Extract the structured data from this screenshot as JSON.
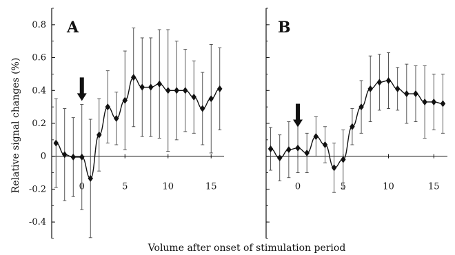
{
  "chart_data": [
    {
      "type": "line",
      "panel_label": "A",
      "x": [
        -3,
        -2,
        -1,
        0,
        1,
        2,
        3,
        4,
        5,
        6,
        7,
        8,
        9,
        10,
        11,
        12,
        13,
        14,
        15,
        16
      ],
      "series": [
        {
          "values": [
            0.08,
            0.01,
            -0.005,
            -0.005,
            -0.135,
            0.13,
            0.3,
            0.23,
            0.34,
            0.48,
            0.42,
            0.42,
            0.44,
            0.4,
            0.4,
            0.4,
            0.36,
            0.29,
            0.35,
            0.41
          ],
          "error": [
            0.27,
            0.28,
            0.24,
            0.32,
            0.36,
            0.22,
            0.22,
            0.16,
            0.3,
            0.3,
            0.3,
            0.3,
            0.33,
            0.37,
            0.3,
            0.25,
            0.22,
            0.22,
            0.33,
            0.25
          ],
          "color": "#111111"
        }
      ],
      "x_ticks": [
        "0",
        "5",
        "10",
        "15"
      ],
      "x_tick_values": [
        0,
        5,
        10,
        15
      ],
      "y_ticks": [
        "0.8",
        "0.6",
        "0.4",
        "0.2",
        "0",
        "-0.2",
        "-0.4"
      ],
      "y_tick_values": [
        0.8,
        0.6,
        0.4,
        0.2,
        0,
        -0.2,
        -0.4
      ],
      "ylim": [
        -0.5,
        0.9
      ],
      "xlim": [
        -3.5,
        16.5
      ],
      "zero_line": true,
      "marker": "diamond",
      "annotation": {
        "type": "down-arrow",
        "x": 0,
        "y_tip": 0.32
      }
    },
    {
      "type": "line",
      "panel_label": "B",
      "x": [
        -3,
        -2,
        -1,
        0,
        1,
        2,
        3,
        4,
        5,
        6,
        7,
        8,
        9,
        10,
        11,
        12,
        13,
        14,
        15,
        16
      ],
      "series": [
        {
          "values": [
            0.045,
            -0.01,
            0.04,
            0.05,
            0.02,
            0.12,
            0.07,
            -0.07,
            -0.02,
            0.18,
            0.3,
            0.41,
            0.45,
            0.46,
            0.41,
            0.38,
            0.38,
            0.33,
            0.33,
            0.32
          ],
          "error": [
            0.13,
            0.14,
            0.17,
            0.15,
            0.12,
            0.12,
            0.11,
            0.15,
            0.18,
            0.11,
            0.16,
            0.2,
            0.17,
            0.17,
            0.13,
            0.18,
            0.17,
            0.22,
            0.17,
            0.18
          ],
          "color": "#111111"
        }
      ],
      "x_ticks": [
        "0",
        "5",
        "10",
        "15"
      ],
      "x_tick_values": [
        0,
        5,
        10,
        15
      ],
      "ylim": [
        -0.5,
        0.9
      ],
      "xlim": [
        -3.5,
        16.5
      ],
      "zero_line": true,
      "marker": "diamond",
      "annotation": {
        "type": "down-arrow",
        "x": 0,
        "y_tip": 0.16
      }
    }
  ],
  "axes": {
    "ylabel": "Relative signal changes (%)",
    "xlabel": "Volume after onset of stimulation period"
  }
}
